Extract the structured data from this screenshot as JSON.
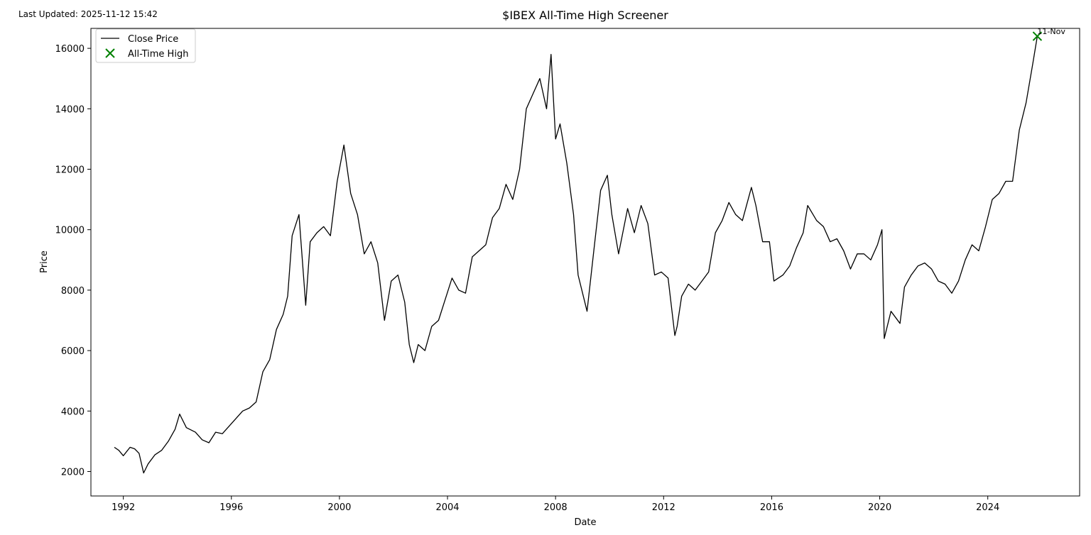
{
  "header": {
    "last_updated": "Last Updated: 2025-11-12 15:42"
  },
  "chart_data": {
    "type": "line",
    "title": "$IBEX All-Time High Screener",
    "xlabel": "Date",
    "ylabel": "Price",
    "xlim": [
      1990.8,
      2027.4
    ],
    "ylim": [
      1190,
      16660
    ],
    "x_ticks": [
      "1992",
      "1996",
      "2000",
      "2004",
      "2008",
      "2012",
      "2016",
      "2020",
      "2024"
    ],
    "y_ticks": [
      2000,
      4000,
      6000,
      8000,
      10000,
      12000,
      14000,
      16000
    ],
    "grid": false,
    "legend": {
      "placement": "top-left",
      "entries": [
        "Close Price",
        "All-Time High"
      ]
    },
    "series": [
      {
        "name": "Close Price",
        "color": "#000000",
        "x": [
          "1991-09",
          "1991-11",
          "1992-01",
          "1992-04",
          "1992-06",
          "1992-08",
          "1992-10",
          "1992-12",
          "1993-03",
          "1993-06",
          "1993-09",
          "1993-12",
          "1994-02",
          "1994-05",
          "1994-09",
          "1994-12",
          "1995-03",
          "1995-06",
          "1995-09",
          "1995-12",
          "1996-03",
          "1996-06",
          "1996-09",
          "1996-12",
          "1997-03",
          "1997-06",
          "1997-09",
          "1997-12",
          "1998-02",
          "1998-04",
          "1998-07",
          "1998-10",
          "1998-12",
          "1999-03",
          "1999-06",
          "1999-09",
          "1999-12",
          "2000-03",
          "2000-06",
          "2000-09",
          "2000-12",
          "2001-03",
          "2001-06",
          "2001-09",
          "2001-12",
          "2002-03",
          "2002-06",
          "2002-08",
          "2002-10",
          "2002-12",
          "2003-03",
          "2003-06",
          "2003-09",
          "2003-12",
          "2004-03",
          "2004-06",
          "2004-09",
          "2004-12",
          "2005-03",
          "2005-06",
          "2005-09",
          "2005-12",
          "2006-03",
          "2006-06",
          "2006-09",
          "2006-12",
          "2007-03",
          "2007-06",
          "2007-09",
          "2007-11",
          "2008-01",
          "2008-03",
          "2008-06",
          "2008-09",
          "2008-11",
          "2009-03",
          "2009-06",
          "2009-09",
          "2009-12",
          "2010-02",
          "2010-05",
          "2010-09",
          "2010-12",
          "2011-03",
          "2011-06",
          "2011-09",
          "2011-12",
          "2012-03",
          "2012-06",
          "2012-07",
          "2012-09",
          "2012-12",
          "2013-03",
          "2013-06",
          "2013-09",
          "2013-12",
          "2014-03",
          "2014-06",
          "2014-09",
          "2014-12",
          "2015-04",
          "2015-06",
          "2015-09",
          "2015-12",
          "2016-02",
          "2016-06",
          "2016-09",
          "2016-12",
          "2017-03",
          "2017-05",
          "2017-09",
          "2017-12",
          "2018-03",
          "2018-06",
          "2018-09",
          "2018-12",
          "2019-03",
          "2019-06",
          "2019-09",
          "2019-12",
          "2020-02",
          "2020-03",
          "2020-06",
          "2020-10",
          "2020-12",
          "2021-03",
          "2021-06",
          "2021-09",
          "2021-12",
          "2022-03",
          "2022-06",
          "2022-09",
          "2022-12",
          "2023-03",
          "2023-06",
          "2023-09",
          "2023-12",
          "2024-03",
          "2024-06",
          "2024-09",
          "2024-12",
          "2025-03",
          "2025-06",
          "2025-09",
          "2025-11"
        ],
        "y": [
          2800,
          2700,
          2520,
          2800,
          2750,
          2600,
          1950,
          2250,
          2550,
          2700,
          3000,
          3400,
          3900,
          3450,
          3300,
          3050,
          2950,
          3300,
          3250,
          3500,
          3750,
          4000,
          4100,
          4300,
          5300,
          5700,
          6700,
          7200,
          7800,
          9800,
          10500,
          7500,
          9600,
          9900,
          10100,
          9800,
          11600,
          12800,
          11200,
          10500,
          9200,
          9600,
          8900,
          7000,
          8300,
          8500,
          7600,
          6200,
          5600,
          6200,
          6000,
          6800,
          7000,
          7700,
          8400,
          8000,
          7900,
          9100,
          9300,
          9500,
          10400,
          10700,
          11500,
          11000,
          12000,
          14000,
          14500,
          15000,
          14000,
          15800,
          13000,
          13500,
          12200,
          10500,
          8500,
          7300,
          9300,
          11300,
          11800,
          10500,
          9200,
          10700,
          9900,
          10800,
          10200,
          8500,
          8600,
          8400,
          6500,
          6800,
          7800,
          8200,
          8000,
          8300,
          8600,
          9900,
          10300,
          10900,
          10500,
          10300,
          11400,
          10800,
          9600,
          9600,
          8300,
          8500,
          8800,
          9400,
          9900,
          10800,
          10300,
          10100,
          9600,
          9700,
          9300,
          8700,
          9200,
          9200,
          9000,
          9500,
          10000,
          6400,
          7300,
          6900,
          8100,
          8500,
          8800,
          8900,
          8700,
          8300,
          8200,
          7900,
          8300,
          9000,
          9500,
          9300,
          10100,
          11000,
          11200,
          11600,
          11600,
          13300,
          14200,
          15500,
          16400
        ]
      }
    ],
    "annotations": [
      {
        "label": "All-Time High",
        "text": "11-Nov",
        "x": "2025-11",
        "y": 16400,
        "color": "#008000"
      }
    ]
  }
}
